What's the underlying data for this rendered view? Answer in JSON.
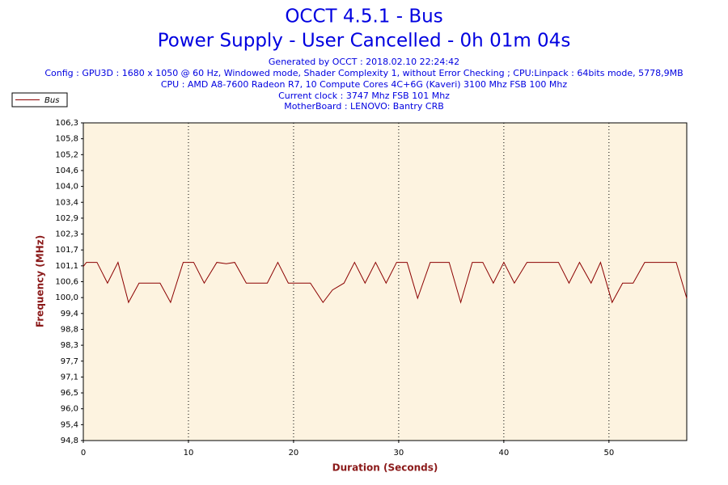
{
  "chart_data": {
    "type": "line",
    "title": "OCCT 4.5.1 - Bus",
    "subtitle": "Power Supply - User Cancelled - 0h 01m 04s",
    "annotations": [
      "Generated by OCCT : 2018.02.10 22:24:42",
      "Config : GPU3D : 1680 x 1050 @ 60 Hz, Windowed mode, Shader Complexity 1, without Error Checking ; CPU:Linpack : 64bits mode, 5778,9MB",
      "CPU : AMD A8-7600 Radeon R7, 10 Compute Cores 4C+6G (Kaveri) 3100 Mhz FSB 100 Mhz",
      "Current clock : 3747 Mhz FSB 101 Mhz",
      "MotherBoard : LENOVO: Bantry CRB"
    ],
    "x_label": "Duration (Seconds)",
    "y_label": "Frequency (MHz)",
    "x": [
      0,
      0.3,
      1.3,
      2.3,
      3.3,
      4.3,
      5.3,
      6.3,
      7.3,
      8.3,
      9.5,
      10.5,
      11.5,
      12.7,
      13.6,
      14.4,
      15.5,
      17.5,
      18.5,
      19.5,
      21.6,
      22.8,
      23.7,
      24.8,
      25.8,
      26.8,
      27.8,
      28.8,
      29.8,
      30.8,
      31.8,
      33,
      34.8,
      35.9,
      37,
      38,
      39,
      40,
      41,
      42.2,
      45.2,
      46.2,
      47.2,
      48.3,
      49.2,
      50.3,
      51.3,
      52.3,
      53.4,
      56.4,
      57.4
    ],
    "series": [
      {
        "name": "Bus",
        "color": "#8b0000",
        "values": [
          101.1,
          101.25,
          101.25,
          100.5,
          101.25,
          99.8,
          100.5,
          100.5,
          100.5,
          99.8,
          101.25,
          101.25,
          100.5,
          101.25,
          101.2,
          101.25,
          100.5,
          100.5,
          101.25,
          100.5,
          100.5,
          99.8,
          100.25,
          100.5,
          101.25,
          100.5,
          101.25,
          100.5,
          101.25,
          101.25,
          99.95,
          101.25,
          101.25,
          99.8,
          101.25,
          101.25,
          100.5,
          101.25,
          100.5,
          101.25,
          101.25,
          100.5,
          101.25,
          100.5,
          101.25,
          99.8,
          100.5,
          100.5,
          101.25,
          101.25,
          99.95
        ]
      }
    ],
    "xlim": [
      0,
      57.4
    ],
    "ylim": [
      94.8,
      106.3
    ],
    "xticks": [
      0,
      10,
      20,
      30,
      40,
      50
    ],
    "yticks": [
      {
        "value": 94.8,
        "label": "94,8"
      },
      {
        "value": 95.375,
        "label": "95,4"
      },
      {
        "value": 95.95,
        "label": "96,0"
      },
      {
        "value": 96.525,
        "label": "96,5"
      },
      {
        "value": 97.1,
        "label": "97,1"
      },
      {
        "value": 97.675,
        "label": "97,7"
      },
      {
        "value": 98.25,
        "label": "98,3"
      },
      {
        "value": 98.825,
        "label": "98,8"
      },
      {
        "value": 99.4,
        "label": "99,4"
      },
      {
        "value": 99.975,
        "label": "100,0"
      },
      {
        "value": 100.55,
        "label": "100,6"
      },
      {
        "value": 101.125,
        "label": "101,1"
      },
      {
        "value": 101.7,
        "label": "101,7"
      },
      {
        "value": 102.275,
        "label": "102,3"
      },
      {
        "value": 102.85,
        "label": "102,9"
      },
      {
        "value": 103.425,
        "label": "103,4"
      },
      {
        "value": 104.0,
        "label": "104,0"
      },
      {
        "value": 104.575,
        "label": "104,6"
      },
      {
        "value": 105.15,
        "label": "105,2"
      },
      {
        "value": 105.725,
        "label": "105,8"
      },
      {
        "value": 106.3,
        "label": "106,3"
      }
    ],
    "grid": true
  }
}
